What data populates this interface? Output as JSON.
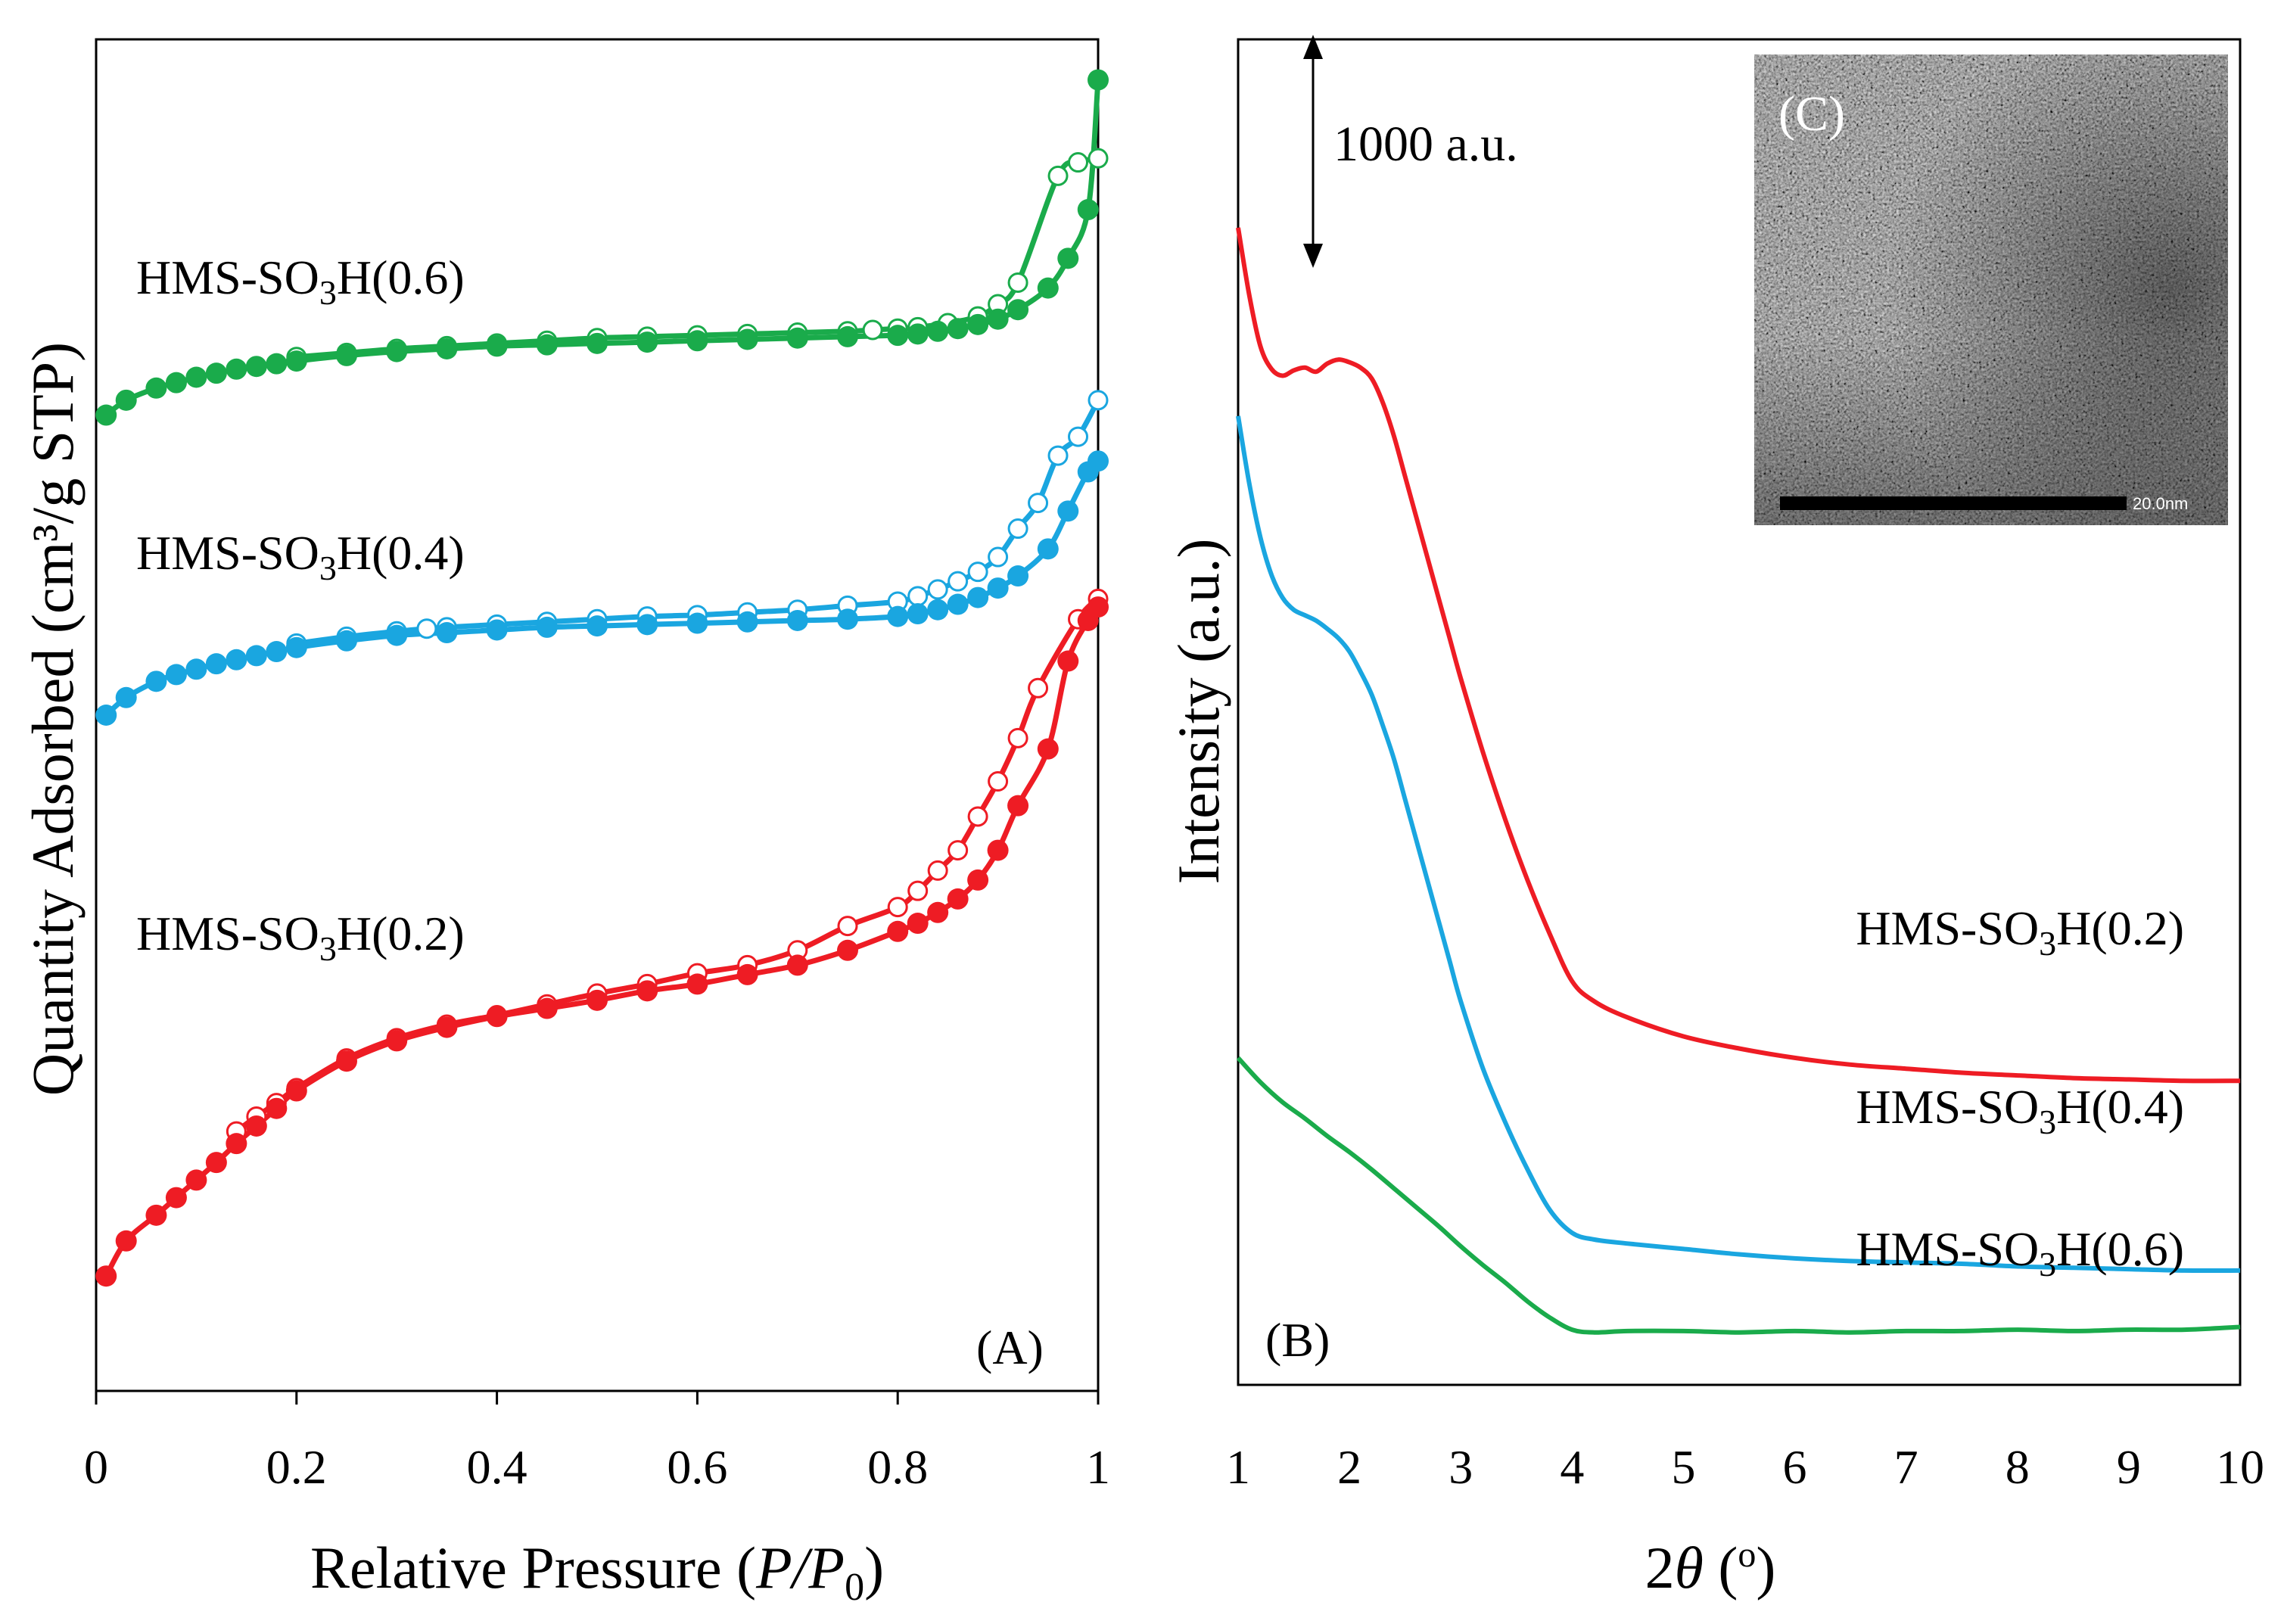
{
  "chart_data": [
    {
      "panel": "A",
      "type": "line",
      "panel_label": "(A)",
      "xlabel_text": "Relative Pressure (",
      "xlabel_var": "P/P",
      "xlabel_sub": "0",
      "xlabel_close": ")",
      "ylabel": "Quantity Adsorbed (cm³/g STP)",
      "xlim": [
        0,
        1
      ],
      "ylim": [
        0,
        100
      ],
      "xticks": [
        "0",
        "0.2",
        "0.4",
        "0.6",
        "0.8",
        "1"
      ],
      "xtick_values": [
        0,
        0.2,
        0.4,
        0.6,
        0.8,
        1
      ],
      "series": [
        {
          "name": "HMS-SO3H(0.6)",
          "label_pre": "HMS-SO",
          "label_sub": "3",
          "label_post": "H(0.6)",
          "color": "#1aab4b",
          "adsorption": {
            "x": [
              0.01,
              0.03,
              0.06,
              0.08,
              0.1,
              0.12,
              0.14,
              0.16,
              0.18,
              0.2,
              0.25,
              0.3,
              0.35,
              0.4,
              0.45,
              0.5,
              0.55,
              0.6,
              0.65,
              0.7,
              0.75,
              0.8,
              0.82,
              0.84,
              0.86,
              0.88,
              0.9,
              0.92,
              0.95,
              0.97,
              0.99,
              1.0
            ],
            "y": [
              72.2,
              73.3,
              74.2,
              74.6,
              75.0,
              75.3,
              75.6,
              75.8,
              76.0,
              76.2,
              76.6,
              76.9,
              77.1,
              77.3,
              77.4,
              77.5,
              77.6,
              77.7,
              77.8,
              77.9,
              78.0,
              78.1,
              78.2,
              78.4,
              78.6,
              78.9,
              79.3,
              80.0,
              81.6,
              83.8,
              87.4,
              97.0
            ]
          },
          "desorption": {
            "x": [
              1.0,
              0.98,
              0.96,
              0.92,
              0.9,
              0.88,
              0.85,
              0.82,
              0.8,
              0.775,
              0.75,
              0.7,
              0.65,
              0.6,
              0.55,
              0.5,
              0.45,
              0.4,
              0.35,
              0.3,
              0.25,
              0.2
            ],
            "y": [
              91.2,
              90.9,
              89.9,
              82.0,
              80.4,
              79.5,
              79.0,
              78.7,
              78.6,
              78.5,
              78.4,
              78.3,
              78.2,
              78.1,
              78.0,
              77.9,
              77.7,
              77.5,
              77.3,
              77.1,
              76.8,
              76.5
            ]
          }
        },
        {
          "name": "HMS-SO3H(0.4)",
          "label_pre": "HMS-SO",
          "label_sub": "3",
          "label_post": "H(0.4)",
          "color": "#1aa6e0",
          "adsorption": {
            "x": [
              0.01,
              0.03,
              0.06,
              0.08,
              0.1,
              0.12,
              0.14,
              0.16,
              0.18,
              0.2,
              0.25,
              0.3,
              0.35,
              0.4,
              0.45,
              0.5,
              0.55,
              0.6,
              0.65,
              0.7,
              0.75,
              0.8,
              0.82,
              0.84,
              0.86,
              0.88,
              0.9,
              0.92,
              0.95,
              0.97,
              0.99,
              1.0
            ],
            "y": [
              50.0,
              51.3,
              52.5,
              53.0,
              53.4,
              53.8,
              54.1,
              54.4,
              54.7,
              55.0,
              55.5,
              55.9,
              56.1,
              56.3,
              56.5,
              56.6,
              56.7,
              56.8,
              56.9,
              57.0,
              57.1,
              57.3,
              57.5,
              57.8,
              58.2,
              58.7,
              59.4,
              60.3,
              62.3,
              65.1,
              68.0,
              68.8
            ]
          },
          "desorption": {
            "x": [
              1.0,
              0.98,
              0.96,
              0.94,
              0.92,
              0.9,
              0.88,
              0.86,
              0.84,
              0.82,
              0.8,
              0.75,
              0.7,
              0.65,
              0.6,
              0.55,
              0.5,
              0.45,
              0.4,
              0.35,
              0.33,
              0.3,
              0.25,
              0.2
            ],
            "y": [
              73.3,
              70.6,
              69.2,
              65.7,
              63.8,
              61.7,
              60.6,
              59.9,
              59.3,
              58.8,
              58.4,
              58.1,
              57.8,
              57.6,
              57.4,
              57.3,
              57.1,
              56.9,
              56.7,
              56.5,
              56.4,
              56.2,
              55.8,
              55.3
            ]
          }
        },
        {
          "name": "HMS-SO3H(0.2)",
          "label_pre": "HMS-SO",
          "label_sub": "3",
          "label_post": "H(0.2)",
          "color": "#ee1c24",
          "adsorption": {
            "x": [
              0.01,
              0.03,
              0.06,
              0.08,
              0.1,
              0.12,
              0.14,
              0.16,
              0.18,
              0.2,
              0.25,
              0.3,
              0.35,
              0.4,
              0.45,
              0.5,
              0.55,
              0.6,
              0.65,
              0.7,
              0.75,
              0.8,
              0.82,
              0.84,
              0.86,
              0.88,
              0.9,
              0.92,
              0.95,
              0.97,
              0.99,
              1.0
            ],
            "y": [
              8.5,
              11.1,
              13.0,
              14.3,
              15.6,
              16.9,
              18.3,
              19.6,
              20.9,
              22.2,
              24.4,
              25.9,
              26.9,
              27.7,
              28.3,
              28.9,
              29.6,
              30.1,
              30.8,
              31.5,
              32.6,
              34.0,
              34.6,
              35.4,
              36.4,
              37.8,
              40.0,
              43.3,
              47.5,
              54.0,
              57.0,
              58.0
            ]
          },
          "desorption": {
            "x": [
              1.0,
              0.98,
              0.94,
              0.92,
              0.9,
              0.88,
              0.86,
              0.84,
              0.82,
              0.8,
              0.75,
              0.7,
              0.65,
              0.6,
              0.55,
              0.5,
              0.45,
              0.4,
              0.35,
              0.3,
              0.25,
              0.2,
              0.18,
              0.16,
              0.14
            ],
            "y": [
              58.6,
              57.1,
              52.0,
              48.3,
              45.1,
              42.5,
              40.0,
              38.5,
              37.0,
              35.8,
              34.4,
              32.6,
              31.5,
              30.9,
              30.1,
              29.4,
              28.6,
              27.8,
              27.1,
              26.1,
              24.6,
              22.4,
              21.3,
              20.3,
              19.2
            ]
          }
        }
      ]
    },
    {
      "panel": "B",
      "type": "line",
      "panel_label": "(B)",
      "xlabel_num": "2",
      "xlabel_var": "θ",
      "xlabel_unit": " (",
      "xlabel_sup": "o",
      "xlabel_close": ")",
      "ylabel": "Intensity (a.u.)",
      "xlim": [
        1,
        10
      ],
      "ylim": [
        0,
        100
      ],
      "xticks": [
        "1",
        "2",
        "3",
        "4",
        "5",
        "6",
        "7",
        "8",
        "9",
        "10"
      ],
      "xtick_values": [
        1,
        2,
        3,
        4,
        5,
        6,
        7,
        8,
        9,
        10
      ],
      "scale_bar": "1000 a.u.",
      "series": [
        {
          "name": "HMS-SO3H(0.2)",
          "label_pre": "HMS-SO",
          "label_sub": "3",
          "label_post": "H(0.2)",
          "color": "#ee1c24",
          "x": [
            1.0,
            1.1,
            1.2,
            1.3,
            1.4,
            1.5,
            1.6,
            1.7,
            1.8,
            1.9,
            2.0,
            2.1,
            2.2,
            2.3,
            2.4,
            2.5,
            2.6,
            2.7,
            2.8,
            2.9,
            3.0,
            3.2,
            3.4,
            3.6,
            3.8,
            4.0,
            4.2,
            4.5,
            5.0,
            5.5,
            6.0,
            6.5,
            7.0,
            7.5,
            8.0,
            8.5,
            9.0,
            9.5,
            10.0
          ],
          "y": [
            86.0,
            81.0,
            77.2,
            75.5,
            75.0,
            75.4,
            75.6,
            75.3,
            75.9,
            76.2,
            76.0,
            75.6,
            74.8,
            73.0,
            70.5,
            67.5,
            64.5,
            61.5,
            58.5,
            55.5,
            52.5,
            47.0,
            42.0,
            37.5,
            33.5,
            30.0,
            28.5,
            27.3,
            25.9,
            25.0,
            24.3,
            23.8,
            23.5,
            23.2,
            23.0,
            22.8,
            22.7,
            22.6,
            22.6
          ]
        },
        {
          "name": "HMS-SO3H(0.4)",
          "label_pre": "HMS-SO",
          "label_sub": "3",
          "label_post": "H(0.4)",
          "color": "#1aa6e0",
          "x": [
            1.0,
            1.1,
            1.2,
            1.3,
            1.4,
            1.5,
            1.6,
            1.7,
            1.8,
            1.9,
            2.0,
            2.1,
            2.2,
            2.3,
            2.4,
            2.5,
            2.6,
            2.7,
            2.8,
            2.9,
            3.0,
            3.2,
            3.4,
            3.6,
            3.8,
            4.0,
            4.2,
            4.5,
            5.0,
            5.5,
            6.0,
            6.5,
            7.0,
            7.5,
            8.0,
            8.5,
            9.0,
            9.5,
            10.0
          ],
          "y": [
            72.0,
            67.0,
            63.0,
            60.2,
            58.5,
            57.6,
            57.2,
            56.8,
            56.2,
            55.5,
            54.5,
            53.0,
            51.3,
            49.0,
            46.5,
            43.5,
            40.5,
            37.5,
            34.5,
            31.5,
            28.5,
            23.5,
            19.5,
            16.0,
            13.0,
            11.3,
            10.8,
            10.5,
            10.1,
            9.7,
            9.4,
            9.2,
            9.1,
            9.0,
            8.8,
            8.7,
            8.6,
            8.5,
            8.5
          ]
        },
        {
          "name": "HMS-SO3H(0.6)",
          "label_pre": "HMS-SO",
          "label_sub": "3",
          "label_post": "H(0.6)",
          "color": "#1aab4b",
          "x": [
            1.0,
            1.2,
            1.4,
            1.6,
            1.8,
            2.0,
            2.2,
            2.4,
            2.6,
            2.8,
            3.0,
            3.2,
            3.4,
            3.6,
            3.8,
            4.0,
            4.2,
            4.5,
            5.0,
            5.5,
            6.0,
            6.5,
            7.0,
            7.5,
            8.0,
            8.5,
            9.0,
            9.5,
            10.0
          ],
          "y": [
            24.3,
            22.5,
            21.0,
            19.8,
            18.5,
            17.3,
            16.0,
            14.6,
            13.2,
            11.8,
            10.3,
            8.9,
            7.6,
            6.2,
            5.0,
            4.1,
            3.9,
            4.0,
            4.0,
            3.9,
            4.0,
            3.9,
            4.0,
            4.0,
            4.1,
            4.0,
            4.1,
            4.1,
            4.3
          ]
        }
      ]
    }
  ],
  "inset": {
    "panel_label": "(C)",
    "scale_bar": "20.0nm"
  }
}
